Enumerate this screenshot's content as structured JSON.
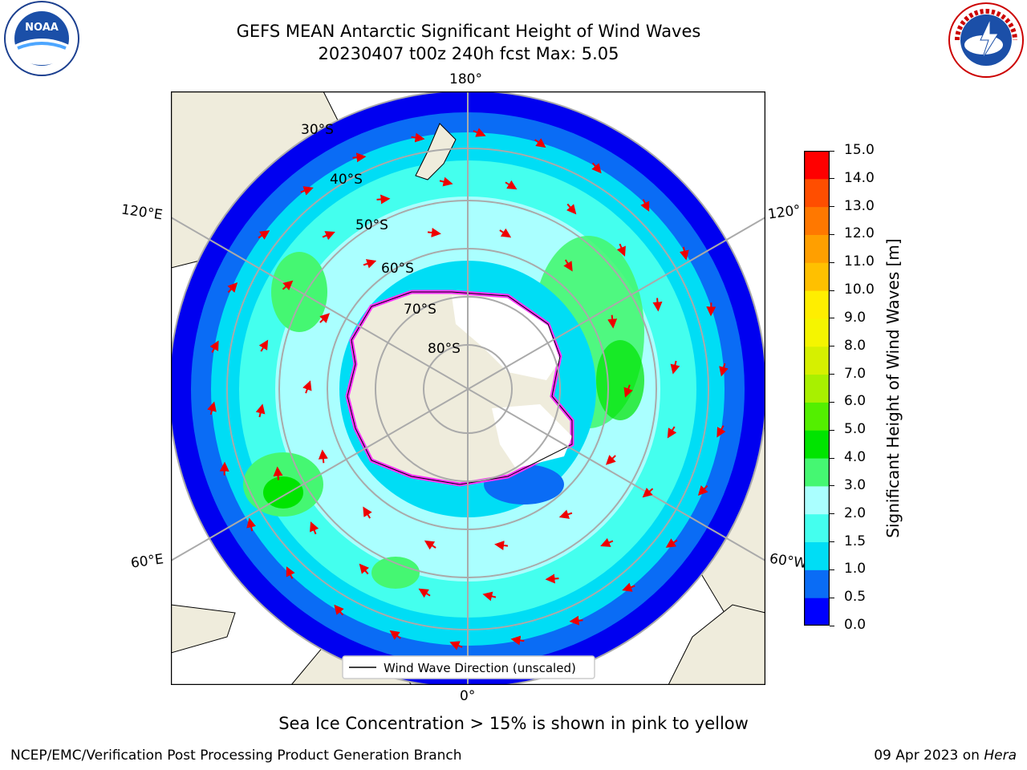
{
  "header": {
    "title_line1": "GEFS MEAN Antarctic Significant Height of Wind Waves",
    "title_line2": "20230407 t00z 240h fcst   Max: 5.05"
  },
  "logos": {
    "left": "noaa-logo",
    "left_text": "NOAA",
    "right": "national-weather-service-logo",
    "right_text": "NATIONAL WEATHER SERVICE"
  },
  "map": {
    "projection": "south-polar-stereographic",
    "longitude_labels": [
      "180°",
      "120°E",
      "120°",
      "60°E",
      "60°W",
      "0°"
    ],
    "latitude_labels": [
      "30°S",
      "40°S",
      "50°S",
      "60°S",
      "70°S",
      "80°S"
    ],
    "legend_label": "Wind Wave Direction (unscaled)"
  },
  "colorbar": {
    "label": "Significant Height of Wind Waves [m]",
    "ticks": [
      "0.0",
      "0.5",
      "1.0",
      "1.5",
      "2.0",
      "3.0",
      "4.0",
      "5.0",
      "6.0",
      "7.0",
      "8.0",
      "9.0",
      "10.0",
      "11.0",
      "12.0",
      "13.0",
      "14.0",
      "15.0"
    ],
    "colors": [
      "#0000ff",
      "#0a6cf5",
      "#00ddf5",
      "#44ffee",
      "#aaffff",
      "#45f772",
      "#00e400",
      "#53ef00",
      "#a8f000",
      "#d6f000",
      "#f5f500",
      "#ffee00",
      "#ffc000",
      "#ff9f00",
      "#ff7800",
      "#ff4e00",
      "#ff0000"
    ]
  },
  "footer": {
    "note": "Sea Ice Concentration > 15% is shown in pink to yellow",
    "left": "NCEP/EMC/Verification Post Processing Product Generation Branch",
    "date": "09 Apr 2023 on ",
    "machine": "Hera"
  }
}
